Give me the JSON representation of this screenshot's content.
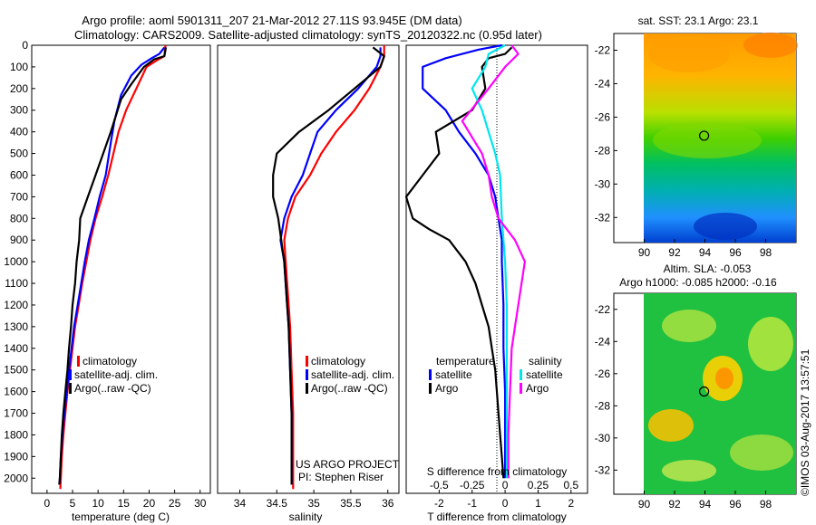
{
  "header": {
    "line1": "Argo profile: aoml 5901311_207 21-Mar-2012 27.11S 93.945E (DM data)",
    "line2": "Climatology: CARS2009. Satellite-adjusted climatology: synTS_20120322.nc (0.95d later)"
  },
  "colors": {
    "climatology": "#ff0000",
    "satellite": "#0000ff",
    "argo": "#000000",
    "salinity_satellite": "#00e5ee",
    "salinity_argo": "#ff00ff"
  },
  "depth_ticks": [
    0,
    100,
    200,
    300,
    400,
    500,
    600,
    700,
    800,
    900,
    1000,
    1100,
    1200,
    1300,
    1400,
    1500,
    1600,
    1700,
    1800,
    1900,
    2000
  ],
  "project": {
    "line1": "US ARGO PROJECT",
    "line2": "PI: Stephen Riser"
  },
  "timestamp": "©IMOS 03-Aug-2017 13:57:51",
  "chart_data": [
    {
      "type": "line",
      "id": "temperature",
      "xlabel": "temperature (deg C)",
      "xlim": [
        -3,
        32
      ],
      "ylim": [
        2070,
        0
      ],
      "xticks": [
        0,
        5,
        10,
        15,
        20,
        25,
        30
      ],
      "legend": {
        "placement": "lower-left",
        "entries": [
          "climatology",
          "satellite-adj. clim.",
          "Argo(..raw -QC)"
        ]
      },
      "series": [
        {
          "name": "climatology",
          "color": "#ff0000",
          "points": [
            [
              23.2,
              0
            ],
            [
              23.0,
              50
            ],
            [
              21.5,
              70
            ],
            [
              19.5,
              100
            ],
            [
              17.5,
              200
            ],
            [
              15.5,
              300
            ],
            [
              14.0,
              400
            ],
            [
              13.0,
              500
            ],
            [
              12.0,
              600
            ],
            [
              10.8,
              700
            ],
            [
              9.5,
              800
            ],
            [
              8.5,
              900
            ],
            [
              7.7,
              1000
            ],
            [
              6.9,
              1100
            ],
            [
              6.2,
              1200
            ],
            [
              5.5,
              1300
            ],
            [
              5.0,
              1400
            ],
            [
              4.5,
              1500
            ],
            [
              4.0,
              1600
            ],
            [
              3.6,
              1700
            ],
            [
              3.2,
              1800
            ],
            [
              2.9,
              1900
            ],
            [
              2.7,
              2000
            ],
            [
              2.6,
              2050
            ]
          ]
        },
        {
          "name": "satellite-adj. clim.",
          "color": "#0000ff",
          "points": [
            [
              23.0,
              10
            ],
            [
              22.0,
              40
            ],
            [
              20.5,
              60
            ],
            [
              18.5,
              90
            ],
            [
              16.5,
              140
            ],
            [
              14.5,
              230
            ],
            [
              13.2,
              350
            ],
            [
              12.5,
              450
            ],
            [
              11.5,
              600
            ],
            [
              10.3,
              700
            ],
            [
              9.3,
              800
            ],
            [
              8.2,
              900
            ],
            [
              7.4,
              1000
            ],
            [
              6.7,
              1100
            ],
            [
              6.0,
              1200
            ],
            [
              5.3,
              1300
            ],
            [
              4.8,
              1400
            ],
            [
              4.3,
              1500
            ],
            [
              3.9,
              1600
            ],
            [
              3.4,
              1700
            ],
            [
              3.0,
              1800
            ],
            [
              2.7,
              1900
            ],
            [
              2.5,
              2000
            ],
            [
              2.4,
              2030
            ]
          ]
        },
        {
          "name": "Argo(..raw -QC)",
          "color": "#000000",
          "points": [
            [
              23.3,
              10
            ],
            [
              23.0,
              50
            ],
            [
              21.0,
              65
            ],
            [
              19.0,
              100
            ],
            [
              16.5,
              180
            ],
            [
              14.5,
              250
            ],
            [
              12.5,
              400
            ],
            [
              11.0,
              500
            ],
            [
              9.5,
              600
            ],
            [
              8.0,
              700
            ],
            [
              6.5,
              800
            ],
            [
              6.3,
              900
            ],
            [
              5.8,
              1000
            ],
            [
              5.5,
              1100
            ],
            [
              5.0,
              1200
            ],
            [
              4.7,
              1300
            ],
            [
              4.3,
              1400
            ],
            [
              4.0,
              1500
            ],
            [
              3.6,
              1600
            ],
            [
              3.2,
              1700
            ],
            [
              2.9,
              1800
            ],
            [
              2.7,
              1900
            ],
            [
              2.5,
              2000
            ],
            [
              2.4,
              2030
            ]
          ]
        }
      ]
    },
    {
      "type": "line",
      "id": "salinity",
      "xlabel": "salinity",
      "xlim": [
        33.7,
        36.15
      ],
      "ylim": [
        2070,
        0
      ],
      "xticks": [
        34,
        34.5,
        35,
        35.5,
        36
      ],
      "xtick_labels": [
        "34",
        "34.5",
        "35",
        "35.5",
        "36"
      ],
      "legend": {
        "placement": "lower-right",
        "entries": [
          "climatology",
          "satellite-adj. clim.",
          "Argo(..raw -QC)"
        ]
      },
      "series": [
        {
          "name": "climatology",
          "color": "#ff0000",
          "points": [
            [
              35.95,
              0
            ],
            [
              35.95,
              50
            ],
            [
              35.9,
              100
            ],
            [
              35.75,
              200
            ],
            [
              35.55,
              300
            ],
            [
              35.3,
              400
            ],
            [
              35.1,
              500
            ],
            [
              34.95,
              600
            ],
            [
              34.75,
              700
            ],
            [
              34.65,
              800
            ],
            [
              34.6,
              900
            ],
            [
              34.62,
              1000
            ],
            [
              34.64,
              1100
            ],
            [
              34.66,
              1200
            ],
            [
              34.68,
              1300
            ],
            [
              34.69,
              1400
            ],
            [
              34.7,
              1500
            ],
            [
              34.71,
              1600
            ],
            [
              34.72,
              1700
            ],
            [
              34.72,
              1800
            ],
            [
              34.72,
              1900
            ],
            [
              34.72,
              2000
            ],
            [
              34.72,
              2050
            ]
          ]
        },
        {
          "name": "satellite-adj. clim.",
          "color": "#0000ff",
          "points": [
            [
              35.9,
              10
            ],
            [
              35.9,
              50
            ],
            [
              35.85,
              100
            ],
            [
              35.6,
              200
            ],
            [
              35.3,
              300
            ],
            [
              35.05,
              400
            ],
            [
              34.95,
              500
            ],
            [
              34.85,
              600
            ],
            [
              34.7,
              700
            ],
            [
              34.6,
              800
            ],
            [
              34.55,
              900
            ],
            [
              34.6,
              1000
            ],
            [
              34.62,
              1100
            ],
            [
              34.64,
              1200
            ],
            [
              34.66,
              1300
            ],
            [
              34.67,
              1400
            ],
            [
              34.68,
              1500
            ],
            [
              34.69,
              1600
            ],
            [
              34.7,
              1700
            ],
            [
              34.7,
              1800
            ],
            [
              34.7,
              1900
            ],
            [
              34.7,
              2000
            ],
            [
              34.7,
              2030
            ]
          ]
        },
        {
          "name": "Argo(..raw -QC)",
          "color": "#000000",
          "points": [
            [
              35.8,
              10
            ],
            [
              35.95,
              50
            ],
            [
              35.9,
              100
            ],
            [
              35.55,
              200
            ],
            [
              35.2,
              300
            ],
            [
              34.8,
              400
            ],
            [
              34.5,
              500
            ],
            [
              34.45,
              600
            ],
            [
              34.45,
              700
            ],
            [
              34.52,
              800
            ],
            [
              34.56,
              900
            ],
            [
              34.6,
              1000
            ],
            [
              34.62,
              1100
            ],
            [
              34.64,
              1200
            ],
            [
              34.66,
              1300
            ],
            [
              34.67,
              1400
            ],
            [
              34.68,
              1500
            ],
            [
              34.69,
              1600
            ],
            [
              34.7,
              1700
            ],
            [
              34.7,
              1800
            ],
            [
              34.7,
              1900
            ],
            [
              34.7,
              2000
            ],
            [
              34.7,
              2030
            ]
          ]
        }
      ]
    },
    {
      "type": "line",
      "id": "difference",
      "xlabel": "T difference from climatology",
      "xlabel_top": "S difference from climatology",
      "xlim": [
        -3.0,
        2.5
      ],
      "ylim": [
        2070,
        0
      ],
      "xticks": [
        -2,
        -1,
        0,
        1,
        2
      ],
      "s_ticks": [
        -0.5,
        -0.25,
        0,
        0.25,
        0.5
      ],
      "s_tick_labels": [
        "-0.5",
        "-0.25",
        "0",
        "0.25",
        "0.5"
      ],
      "legend": {
        "placement": "lower",
        "temperature_title": "temperature",
        "salinity_title": "salinity",
        "entries": [
          "satellite",
          "Argo",
          "satellite",
          "Argo"
        ]
      },
      "series": [
        {
          "name": "temperature satellite",
          "color": "#0000ff",
          "points": [
            [
              -0.1,
              0
            ],
            [
              -0.8,
              20
            ],
            [
              -1.8,
              60
            ],
            [
              -2.5,
              100
            ],
            [
              -2.5,
              200
            ],
            [
              -1.8,
              300
            ],
            [
              -1.4,
              400
            ],
            [
              -0.9,
              500
            ],
            [
              -0.5,
              600
            ],
            [
              -0.3,
              700
            ],
            [
              -0.2,
              800
            ],
            [
              -0.1,
              900
            ],
            [
              -0.1,
              1000
            ],
            [
              -0.05,
              1200
            ],
            [
              -0.05,
              1400
            ],
            [
              0.0,
              1600
            ],
            [
              0.0,
              1800
            ],
            [
              0.0,
              2000
            ]
          ]
        },
        {
          "name": "temperature Argo",
          "color": "#000000",
          "points": [
            [
              0.2,
              10
            ],
            [
              0.0,
              40
            ],
            [
              -0.5,
              60
            ],
            [
              -0.7,
              100
            ],
            [
              -0.6,
              200
            ],
            [
              -1.0,
              300
            ],
            [
              -2.1,
              400
            ],
            [
              -2.0,
              500
            ],
            [
              -2.5,
              600
            ],
            [
              -3.0,
              700
            ],
            [
              -2.8,
              800
            ],
            [
              -2.3,
              850
            ],
            [
              -1.7,
              900
            ],
            [
              -1.2,
              1000
            ],
            [
              -0.9,
              1100
            ],
            [
              -0.7,
              1200
            ],
            [
              -0.5,
              1300
            ],
            [
              -0.4,
              1400
            ],
            [
              -0.3,
              1500
            ],
            [
              -0.25,
              1600
            ],
            [
              -0.2,
              1700
            ],
            [
              -0.15,
              1800
            ],
            [
              -0.1,
              1900
            ],
            [
              -0.05,
              2000
            ]
          ]
        },
        {
          "name": "salinity satellite",
          "color": "#00e5ee",
          "points": [
            [
              0.0,
              0
            ],
            [
              -0.5,
              40
            ],
            [
              -0.6,
              100
            ],
            [
              -1.0,
              200
            ],
            [
              -0.7,
              300
            ],
            [
              -0.5,
              400
            ],
            [
              -0.3,
              500
            ],
            [
              -0.15,
              600
            ],
            [
              -0.1,
              800
            ],
            [
              0.0,
              1000
            ],
            [
              0.05,
              1200
            ],
            [
              0.05,
              1400
            ],
            [
              0.05,
              1600
            ],
            [
              0.05,
              2000
            ]
          ]
        },
        {
          "name": "salinity Argo",
          "color": "#ff00ff",
          "points": [
            [
              0.2,
              0
            ],
            [
              0.4,
              40
            ],
            [
              0.0,
              100
            ],
            [
              -0.5,
              200
            ],
            [
              -1.3,
              350
            ],
            [
              -0.7,
              500
            ],
            [
              -0.5,
              600
            ],
            [
              -0.4,
              700
            ],
            [
              -0.2,
              800
            ],
            [
              0.3,
              900
            ],
            [
              0.6,
              1000
            ],
            [
              0.4,
              1200
            ],
            [
              0.2,
              1400
            ],
            [
              0.15,
              1600
            ],
            [
              0.1,
              1800
            ],
            [
              0.1,
              2000
            ]
          ]
        }
      ]
    },
    {
      "type": "heatmap",
      "id": "sst_map",
      "title": "sat. SST: 23.1  Argo: 23.1",
      "xlim": [
        88,
        100
      ],
      "ylim": [
        -33.5,
        -21
      ],
      "xticks": [
        90,
        92,
        94,
        96,
        98
      ],
      "yticks": [
        -22,
        -24,
        -26,
        -28,
        -30,
        -32
      ],
      "data_xlim": [
        90,
        100
      ],
      "marker": {
        "lon": 93.945,
        "lat": -27.11
      }
    },
    {
      "type": "heatmap",
      "id": "sla_map",
      "title": "Altim. SLA: -0.053",
      "subtitle": "Argo h1000: -0.085 h2000: -0.16",
      "xlim": [
        88,
        100
      ],
      "ylim": [
        -33.5,
        -21
      ],
      "xticks": [
        90,
        92,
        94,
        96,
        98
      ],
      "yticks": [
        -22,
        -24,
        -26,
        -28,
        -30,
        -32
      ],
      "data_xlim": [
        90,
        100
      ],
      "marker": {
        "lon": 93.945,
        "lat": -27.11
      }
    }
  ]
}
